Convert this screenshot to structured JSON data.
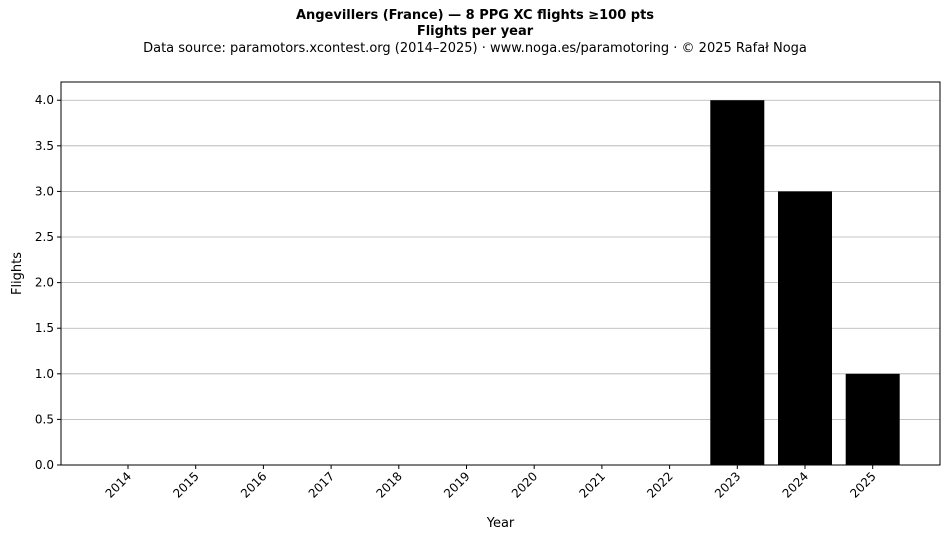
{
  "chart_data": {
    "type": "bar",
    "title": "Angevillers (France)  —  8 PPG XC flights ≥100 pts",
    "subtitle": "Flights per year",
    "source_note": "Data source: paramotors.xcontest.org (2014–2025)  ·  www.noga.es/paramotoring  ·  © 2025 Rafał Noga",
    "xlabel": "Year",
    "ylabel": "Flights",
    "categories": [
      "2014",
      "2015",
      "2016",
      "2017",
      "2018",
      "2019",
      "2020",
      "2021",
      "2022",
      "2023",
      "2024",
      "2025"
    ],
    "values": [
      0,
      0,
      0,
      0,
      0,
      0,
      0,
      0,
      0,
      4,
      3,
      1
    ],
    "ylim": [
      0,
      4.2
    ],
    "yticks": [
      "0.0",
      "0.5",
      "1.0",
      "1.5",
      "2.0",
      "2.5",
      "3.0",
      "3.5",
      "4.0"
    ],
    "grid": "horizontal",
    "bar_color": "#000000",
    "grid_color": "#b0b0b0"
  }
}
